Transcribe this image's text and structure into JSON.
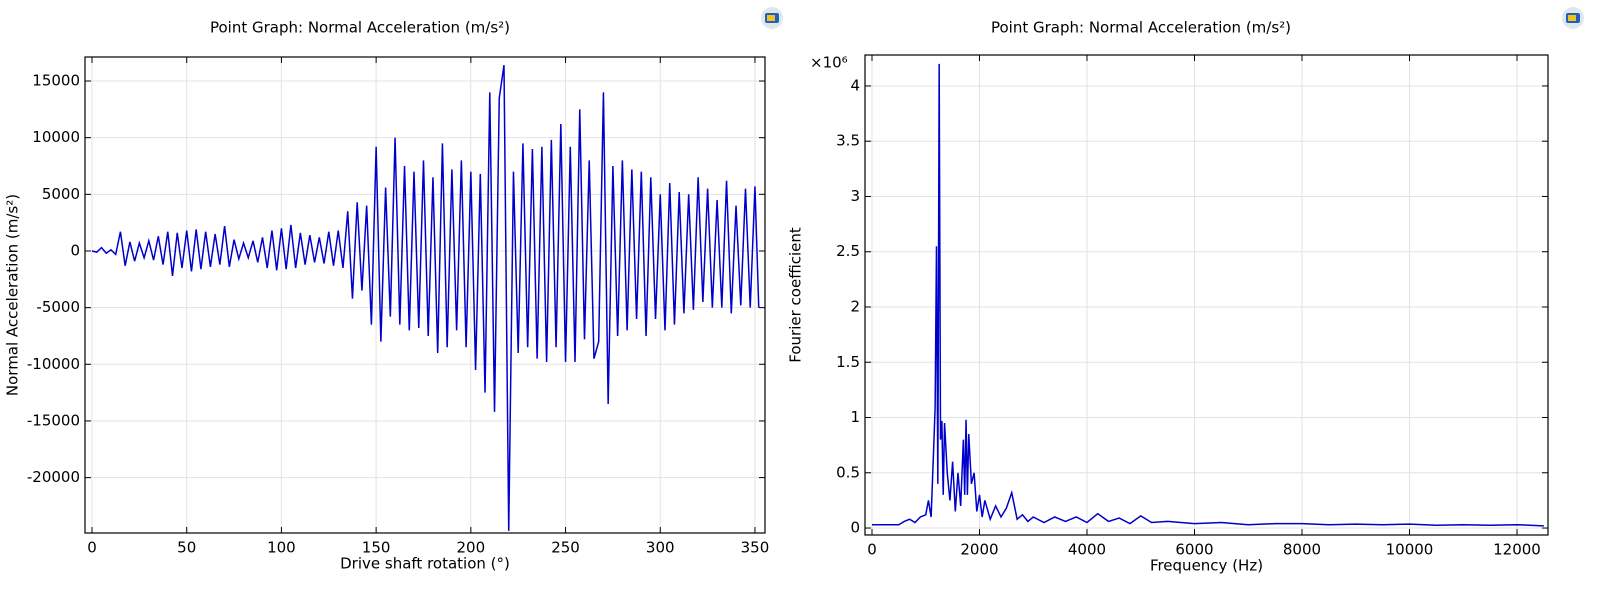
{
  "chart_data": [
    {
      "type": "line",
      "title": "Point Graph: Normal Acceleration (m/s²)",
      "xlabel": "Drive shaft rotation (°)",
      "ylabel": "Normal Acceleration (m/s²)",
      "color": "#0000cc",
      "grid": true,
      "xlim": [
        -3.7,
        355.3
      ],
      "ylim": [
        -24890,
        17120
      ],
      "xticks": [
        0,
        50,
        100,
        150,
        200,
        250,
        300,
        350
      ],
      "yticks": [
        -20000,
        -15000,
        -10000,
        -5000,
        0,
        5000,
        10000,
        15000
      ],
      "x": [
        0,
        2.5,
        5,
        7.5,
        10,
        12.5,
        15,
        17.5,
        20,
        22.5,
        25,
        27.5,
        30,
        32.5,
        35,
        37.5,
        40,
        42.5,
        45,
        47.5,
        50,
        52.5,
        55,
        57.5,
        60,
        62.5,
        65,
        67.5,
        70,
        72.5,
        75,
        77.5,
        80,
        82.5,
        85,
        87.5,
        90,
        92.5,
        95,
        97.5,
        100,
        102.5,
        105,
        107.5,
        110,
        112.5,
        115,
        117.5,
        120,
        122.5,
        125,
        127.5,
        130,
        132.5,
        135,
        137.5,
        140,
        142.5,
        145,
        147.5,
        150,
        152.5,
        155,
        157.5,
        160,
        162.5,
        165,
        167.5,
        170,
        172.5,
        175,
        177.5,
        180,
        182.5,
        185,
        187.5,
        190,
        192.5,
        195,
        197.5,
        200,
        202.5,
        205,
        207.5,
        210,
        212.5,
        215,
        217.5,
        220,
        222.5,
        225,
        227.5,
        230,
        232.5,
        235,
        237.5,
        240,
        242.5,
        245,
        247.5,
        250,
        252.5,
        255,
        257.5,
        260,
        262.5,
        265,
        267.5,
        270,
        272.5,
        275,
        277.5,
        280,
        282.5,
        285,
        287.5,
        290,
        292.5,
        295,
        297.5,
        300,
        302.5,
        305,
        307.5,
        310,
        312.5,
        315,
        317.5,
        320,
        322.5,
        325,
        327.5,
        330,
        332.5,
        335,
        337.5,
        340,
        342.5,
        345,
        347.5,
        350,
        352
      ],
      "values": [
        0,
        -100,
        300,
        -200,
        100,
        -300,
        1700,
        -1300,
        800,
        -900,
        700,
        -600,
        900,
        -800,
        1300,
        -1200,
        1700,
        -2200,
        1600,
        -1500,
        1800,
        -1800,
        1900,
        -1600,
        1700,
        -1400,
        1500,
        -1200,
        2200,
        -1400,
        1000,
        -700,
        700,
        -600,
        900,
        -1000,
        1200,
        -1500,
        1800,
        -1700,
        2000,
        -1600,
        2300,
        -1500,
        1600,
        -1200,
        1400,
        -1000,
        1200,
        -1100,
        1700,
        -1300,
        1800,
        -1500,
        3500,
        -4200,
        4300,
        -3500,
        4000,
        -6500,
        9200,
        -8000,
        5600,
        -5800,
        10000,
        -6500,
        7500,
        -7000,
        7000,
        -6800,
        8000,
        -7500,
        6500,
        -9000,
        9500,
        -8500,
        7200,
        -7000,
        8000,
        -8500,
        7000,
        -10500,
        6800,
        -12500,
        14000,
        -14200,
        13500,
        16400,
        -24700,
        7000,
        -9000,
        9500,
        -8500,
        9000,
        -9500,
        9200,
        -9800,
        9800,
        -8500,
        11200,
        -9800,
        9200,
        -9800,
        12500,
        -7800,
        8000,
        -9500,
        -8000,
        14000,
        -13500,
        7500,
        -7500,
        8000,
        -7000,
        7200,
        -6000,
        7000,
        -7500,
        6500,
        -6000,
        5000,
        -7000,
        6000,
        -6500,
        5200,
        -5500,
        5000,
        -5200,
        6500,
        -4500,
        5500,
        -5000,
        4500,
        -5000,
        6200,
        -5500,
        4000,
        -4800,
        5500,
        -5000,
        5700,
        -5000
      ]
    },
    {
      "type": "line",
      "title": "Point Graph: Normal Acceleration (m/s²)",
      "xlabel": "Frequency (Hz)",
      "ylabel": "Fourier coefficient",
      "y_multiplier": "×10⁶",
      "color": "#0000cc",
      "grid": true,
      "xlim": [
        -130,
        12577
      ],
      "ylim": [
        -0.063,
        4.28
      ],
      "xticks": [
        0,
        2000,
        4000,
        6000,
        8000,
        10000,
        12000
      ],
      "yticks": [
        0,
        0.5,
        1,
        1.5,
        2,
        2.5,
        3,
        3.5,
        4
      ],
      "x": [
        0,
        500,
        600,
        700,
        800,
        900,
        1000,
        1050,
        1100,
        1150,
        1175,
        1200,
        1225,
        1250,
        1275,
        1300,
        1325,
        1350,
        1400,
        1450,
        1500,
        1550,
        1600,
        1650,
        1700,
        1725,
        1750,
        1775,
        1800,
        1850,
        1900,
        1950,
        2000,
        2050,
        2100,
        2200,
        2300,
        2400,
        2500,
        2600,
        2700,
        2800,
        2900,
        3000,
        3200,
        3400,
        3600,
        3800,
        4000,
        4200,
        4400,
        4600,
        4800,
        5000,
        5200,
        5500,
        6000,
        6500,
        7000,
        7500,
        8000,
        8500,
        9000,
        9500,
        10000,
        10500,
        11000,
        11500,
        12000,
        12500
      ],
      "values": [
        0.03,
        0.03,
        0.06,
        0.08,
        0.05,
        0.1,
        0.12,
        0.25,
        0.1,
        0.75,
        1.1,
        2.55,
        0.4,
        4.2,
        0.8,
        0.97,
        0.3,
        0.95,
        0.5,
        0.25,
        0.6,
        0.15,
        0.5,
        0.2,
        0.8,
        0.3,
        0.98,
        0.3,
        0.85,
        0.4,
        0.5,
        0.15,
        0.3,
        0.1,
        0.25,
        0.08,
        0.2,
        0.1,
        0.18,
        0.32,
        0.08,
        0.12,
        0.06,
        0.1,
        0.05,
        0.1,
        0.06,
        0.1,
        0.05,
        0.13,
        0.06,
        0.09,
        0.04,
        0.11,
        0.05,
        0.06,
        0.04,
        0.05,
        0.03,
        0.04,
        0.04,
        0.03,
        0.035,
        0.03,
        0.035,
        0.025,
        0.03,
        0.025,
        0.03,
        0.02
      ]
    }
  ]
}
